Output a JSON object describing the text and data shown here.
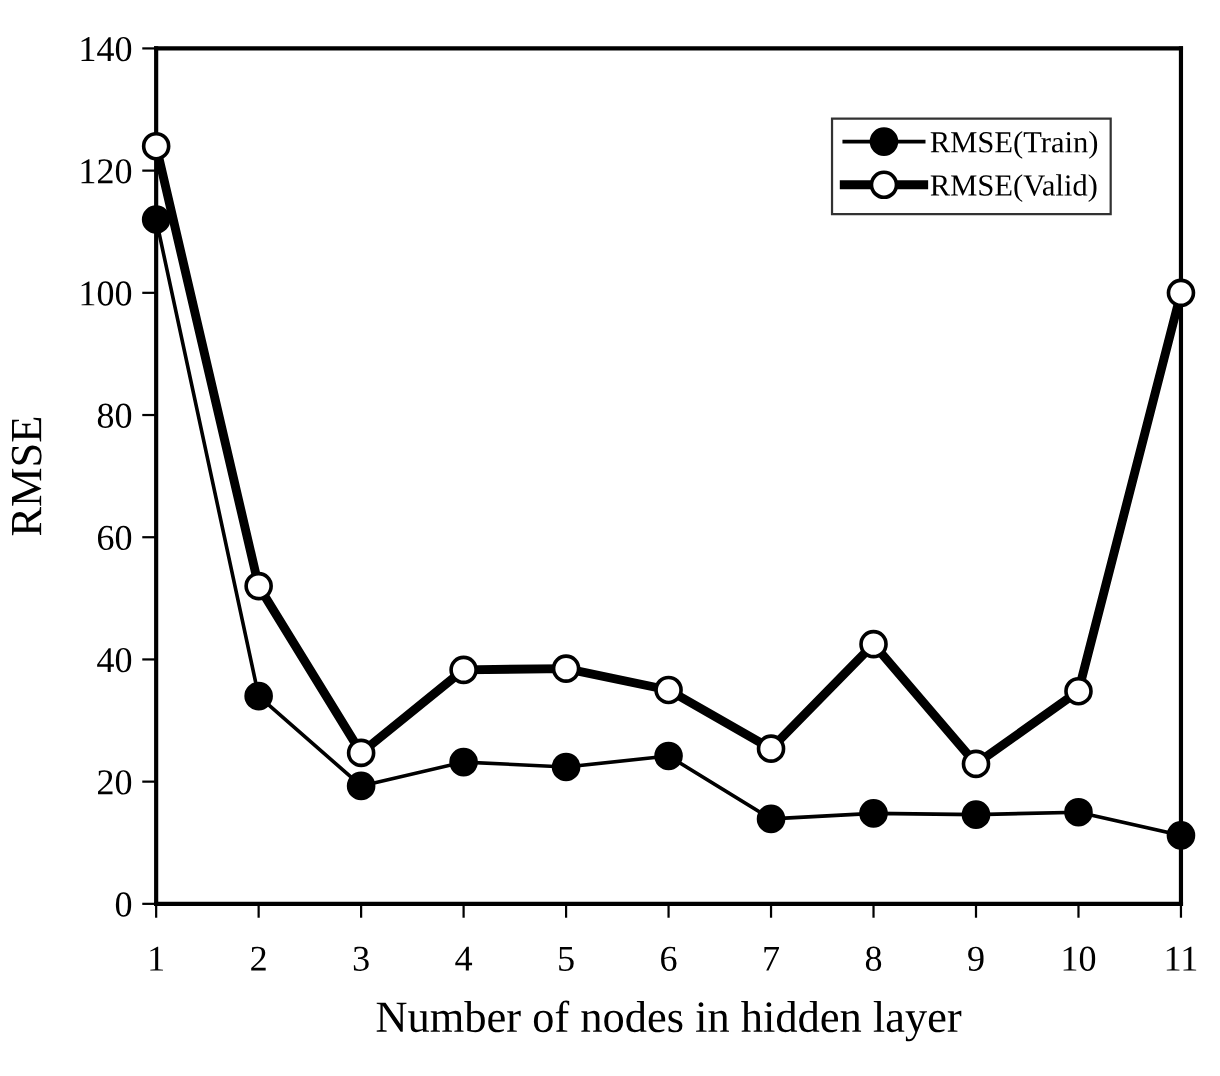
{
  "chart_data": {
    "type": "line",
    "xlabel": "Number of nodes in hidden layer",
    "ylabel": "RMSE",
    "x": [
      1,
      2,
      3,
      4,
      5,
      6,
      7,
      8,
      9,
      10,
      11
    ],
    "series": [
      {
        "name": "RMSE(Train)",
        "color": "#000000",
        "values": [
          112,
          34,
          19.3,
          23.2,
          22.4,
          24.2,
          13.9,
          14.8,
          14.6,
          15,
          11.2
        ]
      },
      {
        "name": "RMSE(Valid)",
        "color": "#000000",
        "values": [
          124,
          52,
          24.7,
          38.3,
          38.5,
          35,
          25.4,
          42.5,
          22.9,
          34.8,
          100
        ]
      }
    ],
    "xlim": [
      1,
      11
    ],
    "xticks": [
      1,
      2,
      3,
      4,
      5,
      6,
      7,
      8,
      9,
      10,
      11
    ],
    "ylim": [
      0,
      140
    ],
    "yticks": [
      0,
      20,
      40,
      60,
      80,
      100,
      120,
      140
    ],
    "grid": false,
    "legend": "top right",
    "marker": "circle",
    "line_style": "solid"
  }
}
